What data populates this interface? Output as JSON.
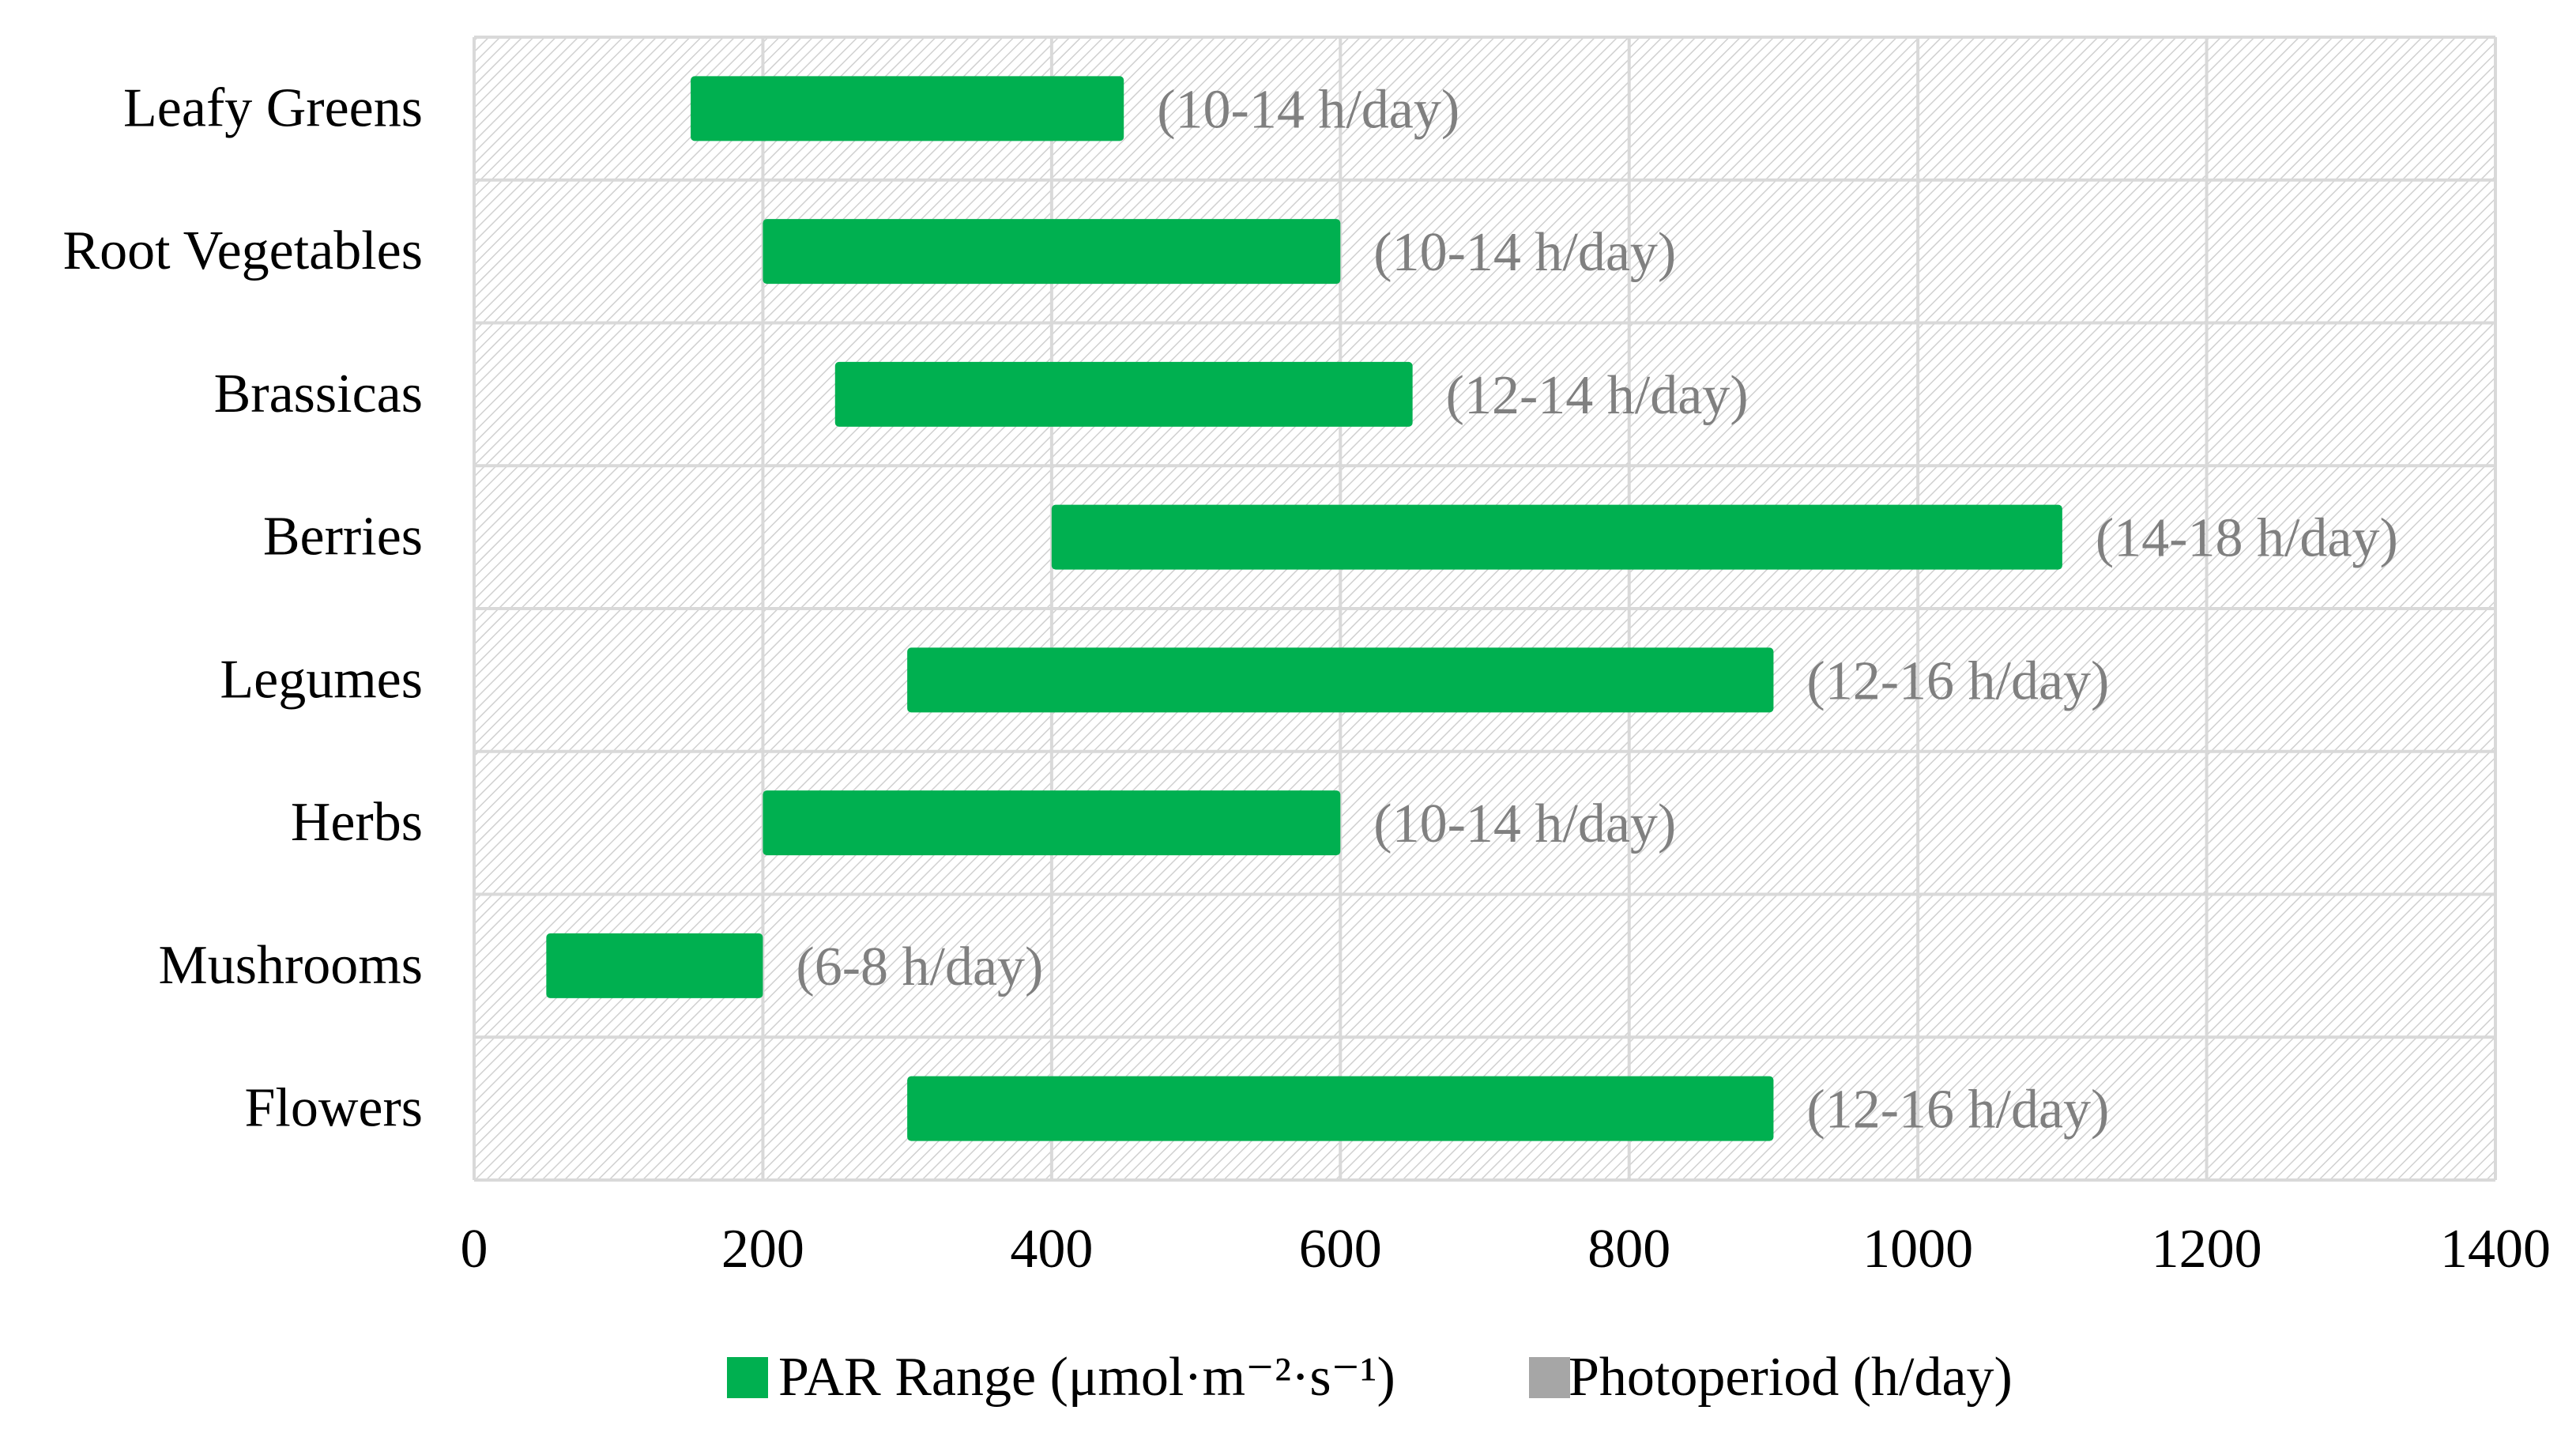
{
  "chart_data": {
    "type": "bar",
    "orientation": "horizontal",
    "categories": [
      "Leafy Greens",
      "Root Vegetables",
      "Brassicas",
      "Berries",
      "Legumes",
      "Herbs",
      "Mushrooms",
      "Flowers"
    ],
    "series": [
      {
        "name": "PAR Range (μmol·m⁻²·s⁻¹)",
        "ranges": [
          [
            150,
            450
          ],
          [
            200,
            600
          ],
          [
            250,
            650
          ],
          [
            400,
            1100
          ],
          [
            300,
            900
          ],
          [
            200,
            600
          ],
          [
            50,
            200
          ],
          [
            300,
            900
          ]
        ],
        "bar_labels": [
          "(10-14 h/day)",
          "(10-14 h/day)",
          "(12-14 h/day)",
          "(14-18 h/day)",
          "(12-16 h/day)",
          "(10-14 h/day)",
          "(6-8 h/day)",
          "(12-16 h/day)"
        ]
      },
      {
        "name": "Photoperiod (h/day)"
      }
    ],
    "xlim": [
      0,
      1400
    ],
    "xticks": [
      "0",
      "200",
      "400",
      "600",
      "800",
      "1000",
      "1200",
      "1400"
    ],
    "grid": true,
    "legend_position": "bottom",
    "colors": {
      "par_range": "#00b050",
      "photoperiod": "#a6a6a6",
      "bar_label": "#808080",
      "grid": "#d9d9d9"
    }
  }
}
